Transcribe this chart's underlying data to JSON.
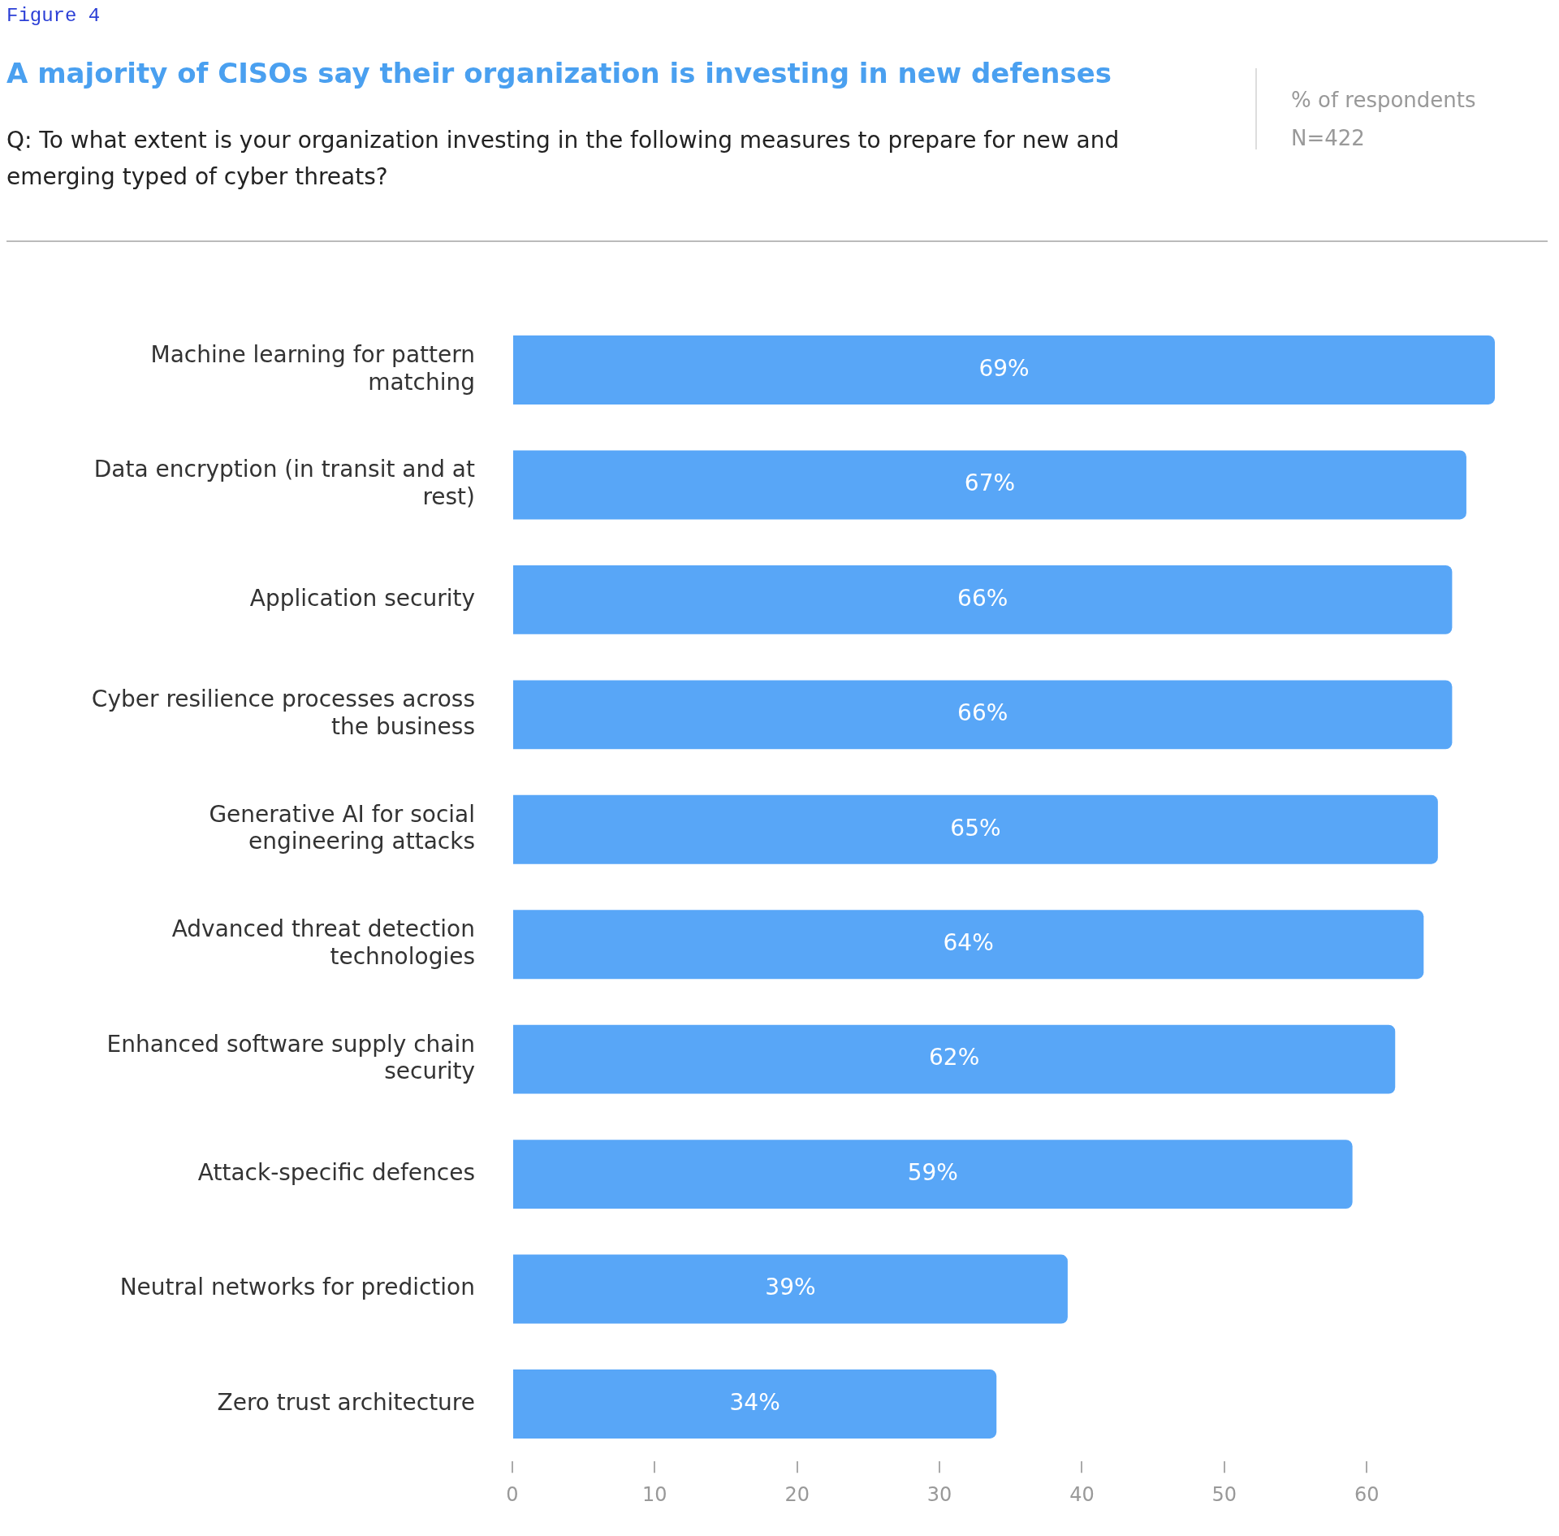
{
  "chart_data": {
    "type": "bar",
    "orientation": "horizontal",
    "title": "A majority of CISOs say their organization is investing in new defenses",
    "subtitle": "Q:  To what extent is your organization investing in the following measures to prepare for new and emerging typed of cyber threats?",
    "annotations": [
      "Figure 4",
      "% of respondents",
      "N=422"
    ],
    "categories": [
      "Machine learning for pattern matching",
      "Data encryption (in transit and at rest)",
      "Application security",
      "Cyber resilience processes across the business",
      "Generative AI for social engineering attacks",
      "Advanced threat detection technologies",
      "Enhanced software supply chain security",
      "Attack-specific defences",
      "Neutral networks for prediction",
      "Zero trust architecture"
    ],
    "values": [
      69,
      67,
      66,
      66,
      65,
      64,
      62,
      59,
      39,
      34
    ],
    "value_labels": [
      "69%",
      "67%",
      "66%",
      "66%",
      "65%",
      "64%",
      "62%",
      "59%",
      "39%",
      "34%"
    ],
    "color": "#58a6f7",
    "xlim": [
      0,
      69
    ],
    "xticks": [
      0,
      10,
      20,
      30,
      40,
      50,
      60
    ],
    "grid": false,
    "legend": false
  }
}
